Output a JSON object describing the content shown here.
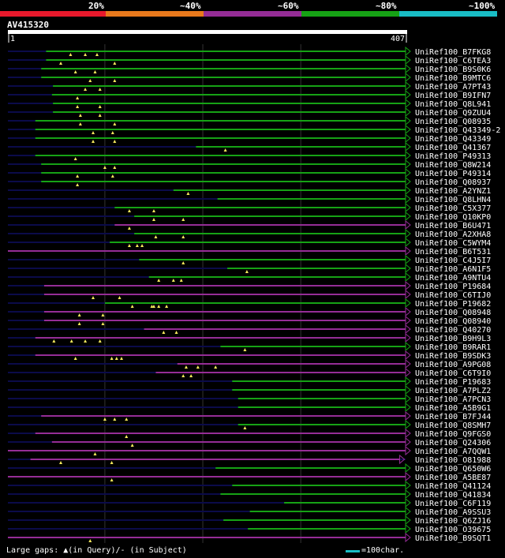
{
  "header": {
    "query_id": "AV415320",
    "color_scale": [
      {
        "label": "20%",
        "color": "#e8192c"
      },
      {
        "label": "",
        "color": "#e8791c"
      },
      {
        "label": "~40%",
        "color": "#952d96"
      },
      {
        "label": "~60%",
        "color": "#952d96"
      },
      {
        "label": "~80%",
        "color": "#16a215"
      },
      {
        "label": "~100%",
        "color": "#19bdc5"
      }
    ]
  },
  "chart_data": {
    "type": "alignment-overview",
    "query_length": 407,
    "ruler_start": "1",
    "ruler_end": "407",
    "vertical_gridlines": [
      100,
      200,
      300
    ],
    "colors": {
      "green": "#16a215",
      "purple": "#952d96",
      "dark": "#0b0b4a"
    },
    "hits": [
      {
        "name": "UniRef100_B7FKG8",
        "color": "green",
        "start": 40,
        "end": 407,
        "gaps": [
          80,
          65,
          92
        ]
      },
      {
        "name": "UniRef100_C6TEA3",
        "color": "green",
        "start": 40,
        "end": 407,
        "gaps": [
          55,
          110
        ]
      },
      {
        "name": "UniRef100_B9S0K6",
        "color": "green",
        "start": 35,
        "end": 407,
        "gaps": [
          70,
          90
        ]
      },
      {
        "name": "UniRef100_B9MTC6",
        "color": "green",
        "start": 35,
        "end": 407,
        "gaps": [
          85,
          110
        ]
      },
      {
        "name": "UniRef100_A7PT43",
        "color": "green",
        "start": 47,
        "end": 407,
        "gaps": [
          80,
          95
        ]
      },
      {
        "name": "UniRef100_B9IFN7",
        "color": "green",
        "start": 46,
        "end": 407,
        "gaps": [
          72
        ]
      },
      {
        "name": "UniRef100_Q8L941",
        "color": "green",
        "start": 47,
        "end": 407,
        "gaps": [
          72,
          95
        ]
      },
      {
        "name": "UniRef100_Q9ZUU4",
        "color": "green",
        "start": 47,
        "end": 407,
        "gaps": [
          75,
          95
        ]
      },
      {
        "name": "UniRef100_Q08935",
        "color": "green",
        "start": 29,
        "end": 407,
        "gaps": [
          75,
          110
        ]
      },
      {
        "name": "UniRef100_Q43349-2",
        "color": "green",
        "start": 29,
        "end": 407,
        "gaps": [
          88,
          108
        ]
      },
      {
        "name": "UniRef100_Q43349",
        "color": "green",
        "start": 29,
        "end": 407,
        "gaps": [
          88,
          110
        ]
      },
      {
        "name": "UniRef100_Q41367",
        "color": "green",
        "start": 193,
        "end": 407,
        "gaps": [
          223
        ]
      },
      {
        "name": "UniRef100_P49313",
        "color": "green",
        "start": 29,
        "end": 407,
        "gaps": [
          70
        ]
      },
      {
        "name": "UniRef100_Q8W214",
        "color": "green",
        "start": 35,
        "end": 407,
        "gaps": [
          100,
          110
        ]
      },
      {
        "name": "UniRef100_P49314",
        "color": "green",
        "start": 35,
        "end": 407,
        "gaps": [
          72,
          108
        ]
      },
      {
        "name": "UniRef100_Q08937",
        "color": "green",
        "start": 35,
        "end": 407,
        "gaps": [
          72
        ]
      },
      {
        "name": "UniRef100_A2YNZ1",
        "color": "green",
        "start": 170,
        "end": 407,
        "gaps": [
          185
        ]
      },
      {
        "name": "UniRef100_Q8LHN4",
        "color": "green",
        "start": 215,
        "end": 407,
        "gaps": []
      },
      {
        "name": "UniRef100_C5X377",
        "color": "green",
        "start": 110,
        "end": 407,
        "gaps": [
          125,
          150
        ]
      },
      {
        "name": "UniRef100_Q10KP0",
        "color": "green",
        "start": 130,
        "end": 407,
        "gaps": [
          150,
          180
        ]
      },
      {
        "name": "UniRef100_B6U471",
        "color": "purple",
        "start": 110,
        "end": 407,
        "gaps": [
          125
        ]
      },
      {
        "name": "UniRef100_A2XHA8",
        "color": "green",
        "start": 130,
        "end": 407,
        "gaps": [
          152,
          180
        ]
      },
      {
        "name": "UniRef100_C5WYM4",
        "color": "green",
        "start": 105,
        "end": 407,
        "gaps": [
          125,
          133,
          138
        ]
      },
      {
        "name": "UniRef100_B6T531",
        "color": "purple",
        "start": 1,
        "end": 407,
        "gaps": []
      },
      {
        "name": "UniRef100_C4J5I7",
        "color": "green",
        "start": 135,
        "end": 407,
        "gaps": [
          180
        ]
      },
      {
        "name": "UniRef100_A6N1F5",
        "color": "green",
        "start": 225,
        "end": 407,
        "gaps": [
          245
        ]
      },
      {
        "name": "UniRef100_A9NTU4",
        "color": "green",
        "start": 145,
        "end": 407,
        "gaps": [
          155,
          170,
          178
        ]
      },
      {
        "name": "UniRef100_P19684",
        "color": "purple",
        "start": 38,
        "end": 407,
        "gaps": []
      },
      {
        "name": "UniRef100_C6TIJ0",
        "color": "purple",
        "start": 38,
        "end": 407,
        "gaps": [
          88,
          115
        ]
      },
      {
        "name": "UniRef100_P19682",
        "color": "green",
        "start": 100,
        "end": 407,
        "gaps": [
          128,
          148,
          150,
          155,
          163
        ]
      },
      {
        "name": "UniRef100_Q08948",
        "color": "purple",
        "start": 38,
        "end": 407,
        "gaps": [
          74,
          98
        ]
      },
      {
        "name": "UniRef100_Q08940",
        "color": "purple",
        "start": 38,
        "end": 407,
        "gaps": [
          74,
          98
        ]
      },
      {
        "name": "UniRef100_Q40270",
        "color": "purple",
        "start": 140,
        "end": 407,
        "gaps": [
          160,
          173
        ]
      },
      {
        "name": "UniRef100_B9H9L3",
        "color": "purple",
        "start": 29,
        "end": 407,
        "gaps": [
          48,
          66,
          80,
          95
        ]
      },
      {
        "name": "UniRef100_B9RAR1",
        "color": "green",
        "start": 218,
        "end": 407,
        "gaps": [
          243
        ]
      },
      {
        "name": "UniRef100_B9SDK3",
        "color": "purple",
        "start": 29,
        "end": 407,
        "gaps": [
          70,
          107,
          112,
          117
        ]
      },
      {
        "name": "UniRef100_A9PG08",
        "color": "purple",
        "start": 174,
        "end": 407,
        "gaps": [
          183,
          195,
          213
        ]
      },
      {
        "name": "UniRef100_C6T9I0",
        "color": "purple",
        "start": 152,
        "end": 407,
        "gaps": [
          180,
          188
        ]
      },
      {
        "name": "UniRef100_P19683",
        "color": "green",
        "start": 230,
        "end": 407,
        "gaps": []
      },
      {
        "name": "UniRef100_A7PLZ2",
        "color": "green",
        "start": 230,
        "end": 407,
        "gaps": []
      },
      {
        "name": "UniRef100_A7PCN3",
        "color": "green",
        "start": 236,
        "end": 407,
        "gaps": []
      },
      {
        "name": "UniRef100_A5B9G1",
        "color": "green",
        "start": 236,
        "end": 407,
        "gaps": []
      },
      {
        "name": "UniRef100_B7FJ44",
        "color": "purple",
        "start": 35,
        "end": 407,
        "gaps": [
          100,
          110,
          122
        ]
      },
      {
        "name": "UniRef100_Q8SMH7",
        "color": "green",
        "start": 236,
        "end": 407,
        "gaps": [
          243
        ]
      },
      {
        "name": "UniRef100_Q9FGS0",
        "color": "purple",
        "start": 29,
        "end": 407,
        "gaps": [
          122
        ]
      },
      {
        "name": "UniRef100_Q24306",
        "color": "purple",
        "start": 46,
        "end": 407,
        "gaps": [
          128
        ]
      },
      {
        "name": "UniRef100_A7QQW1",
        "color": "purple",
        "start": 1,
        "end": 407,
        "gaps": [
          90
        ]
      },
      {
        "name": "UniRef100_O81988",
        "color": "purple",
        "start": 24,
        "end": 401,
        "gaps": [
          55,
          107
        ]
      },
      {
        "name": "UniRef100_Q650W6",
        "color": "green",
        "start": 213,
        "end": 407,
        "gaps": []
      },
      {
        "name": "UniRef100_A5BE87",
        "color": "purple",
        "start": 1,
        "end": 407,
        "gaps": [
          107
        ]
      },
      {
        "name": "UniRef100_Q41124",
        "color": "green",
        "start": 230,
        "end": 407,
        "gaps": []
      },
      {
        "name": "UniRef100_Q41834",
        "color": "green",
        "start": 218,
        "end": 407,
        "gaps": []
      },
      {
        "name": "UniRef100_C6F119",
        "color": "green",
        "start": 283,
        "end": 407,
        "gaps": []
      },
      {
        "name": "UniRef100_A9SSU3",
        "color": "green",
        "start": 248,
        "end": 407,
        "gaps": []
      },
      {
        "name": "UniRef100_Q6ZJ16",
        "color": "green",
        "start": 221,
        "end": 407,
        "gaps": []
      },
      {
        "name": "UniRef100_O39675",
        "color": "green",
        "start": 246,
        "end": 407,
        "gaps": []
      },
      {
        "name": "UniRef100_B9SQT1",
        "color": "purple",
        "start": 1,
        "end": 407,
        "gaps": [
          85
        ]
      }
    ]
  },
  "footer": {
    "legend": "Large gaps: ▲(in Query)/- (in Subject)",
    "scale_label": "=100char."
  }
}
